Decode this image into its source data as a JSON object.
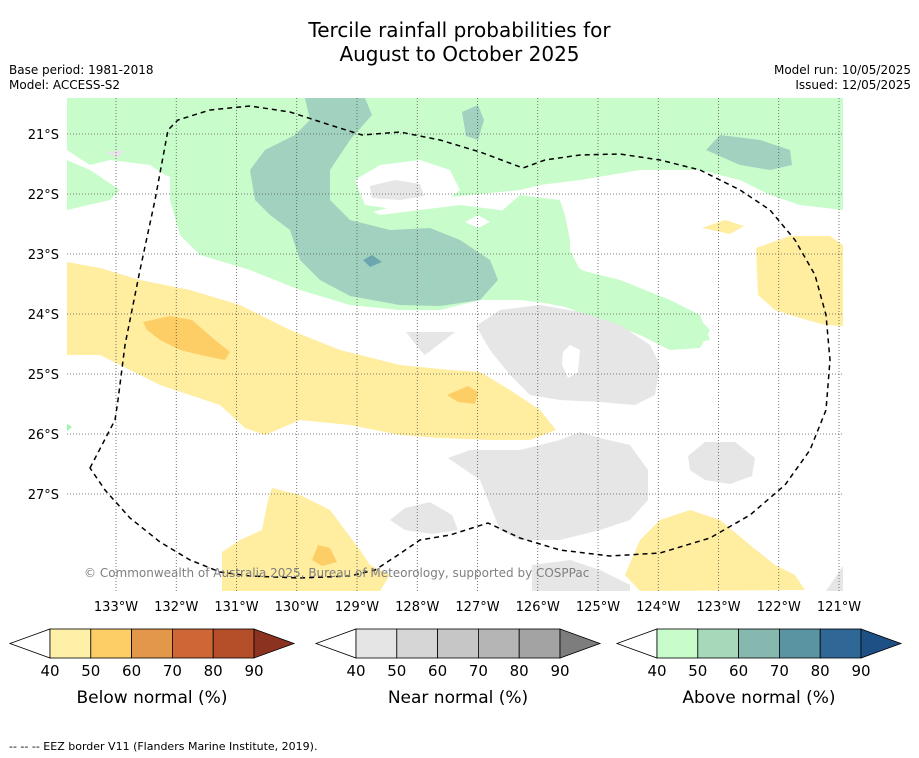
{
  "title_line1": "Tercile rainfall probabilities for",
  "title_line2": "August to October 2025",
  "base_period": "Base period: 1981-2018",
  "model": "Model: ACCESS-S2",
  "model_run": "Model run: 10/05/2025",
  "issued": "Issued: 12/05/2025",
  "copyright": "© Commonwealth of Australia 2025, Bureau of Meteorology, supported by COSPPac",
  "footer": "--  --  -- EEZ border V11 (Flanders Marine Institute, 2019).",
  "lat_labels": [
    "21°S",
    "22°S",
    "23°S",
    "24°S",
    "25°S",
    "26°S",
    "27°S"
  ],
  "lon_labels": [
    "133°W",
    "132°W",
    "131°W",
    "130°W",
    "129°W",
    "128°W",
    "127°W",
    "126°W",
    "125°W",
    "124°W",
    "123°W",
    "122°W",
    "121°W"
  ],
  "colorbars": [
    {
      "name": "below",
      "title": "Below normal (%)",
      "ticks": [
        "40",
        "50",
        "60",
        "70",
        "80",
        "90"
      ],
      "colors": [
        "#fff0a8",
        "#fece66",
        "#e2974a",
        "#cf6636",
        "#b44f2a"
      ],
      "arrow_color": "#8c3220"
    },
    {
      "name": "near",
      "title": "Near normal (%)",
      "ticks": [
        "40",
        "50",
        "60",
        "70",
        "80",
        "90"
      ],
      "colors": [
        "#e5e5e5",
        "#d6d6d6",
        "#c6c6c6",
        "#b5b5b5",
        "#a3a3a3"
      ],
      "arrow_color": "#7d7d7d"
    },
    {
      "name": "above",
      "title": "Above normal (%)",
      "ticks": [
        "40",
        "50",
        "60",
        "70",
        "80",
        "90"
      ],
      "colors": [
        "#c9fccb",
        "#a5d9b9",
        "#86b8b0",
        "#5a93a1",
        "#2f6897"
      ],
      "arrow_color": "#1e4f85"
    }
  ]
}
